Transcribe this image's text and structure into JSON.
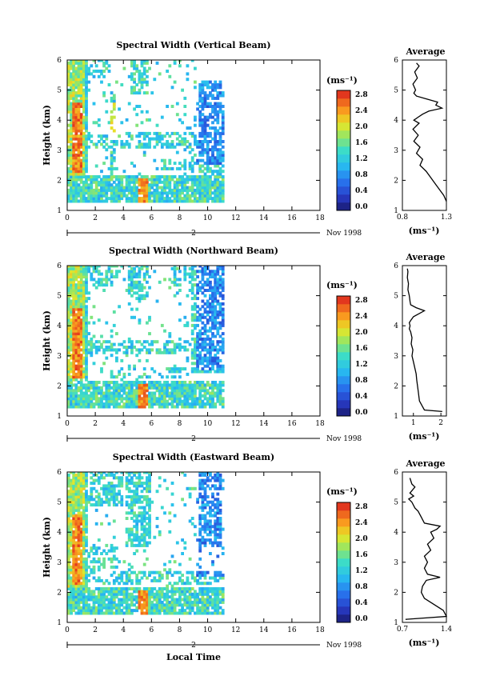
{
  "figure": {
    "xlabel": "Local Time"
  },
  "panels": [
    {
      "id": "vertical",
      "title": "Spectral Width (Vertical Beam)",
      "ylabel": "Height (km)",
      "date_label": "Nov 1998",
      "date_day": "2",
      "colorbar_unit": "(ms⁻¹)",
      "colorbar_ticks": [
        "2.8",
        "2.4",
        "2.0",
        "1.6",
        "1.2",
        "0.8",
        "0.4",
        "0.0"
      ],
      "avg_title": "Average",
      "avg_xlabel": "(ms⁻¹)",
      "avg_xticks": [
        "0.8",
        "1.3"
      ]
    },
    {
      "id": "northward",
      "title": "Spectral Width (Northward Beam)",
      "ylabel": "Height (km)",
      "date_label": "Nov 1998",
      "date_day": "2",
      "colorbar_unit": "(ms⁻¹)",
      "colorbar_ticks": [
        "2.8",
        "2.4",
        "2.0",
        "1.6",
        "1.2",
        "0.8",
        "0.4",
        "0.0"
      ],
      "avg_title": "Average",
      "avg_xlabel": "(ms⁻¹)",
      "avg_xticks": [
        "1",
        "2"
      ]
    },
    {
      "id": "eastward",
      "title": "Spectral Width (Eastward Beam)",
      "ylabel": "Height (km)",
      "date_label": "Nov 1998",
      "date_day": "2",
      "colorbar_unit": "(ms⁻¹)",
      "colorbar_ticks": [
        "2.8",
        "2.4",
        "2.0",
        "1.6",
        "1.2",
        "0.8",
        "0.4",
        "0.0"
      ],
      "avg_title": "Average",
      "avg_xlabel": "(ms⁻¹)",
      "avg_xticks": [
        "0.7",
        "1.4"
      ]
    }
  ],
  "chart_data": [
    {
      "type": "heatmap",
      "title": "Spectral Width (Vertical Beam)",
      "xlabel": "Local Time",
      "ylabel": "Height (km)",
      "xlim": [
        0,
        18
      ],
      "ylim": [
        1,
        6
      ],
      "xticks": [
        0,
        2,
        4,
        6,
        8,
        10,
        12,
        14,
        16,
        18
      ],
      "yticks": [
        1,
        2,
        3,
        4,
        5,
        6
      ],
      "data_time_range": [
        0,
        11
      ],
      "colorbar": {
        "label": "(ms⁻¹)",
        "range": [
          0.0,
          3.0
        ],
        "ticks": [
          0.0,
          0.4,
          0.8,
          1.2,
          1.6,
          2.0,
          2.4,
          2.8
        ]
      },
      "date": "2 Nov 1998"
    },
    {
      "type": "line",
      "title": "Average",
      "xlabel": "(ms⁻¹)",
      "ylabel": "Height (km)",
      "xlim": [
        0.8,
        1.3
      ],
      "ylim": [
        1,
        6
      ],
      "x": [
        1.3,
        1.27,
        1.22,
        1.17,
        1.12,
        1.07,
        1.0,
        1.03,
        0.96,
        1.0,
        0.93,
        0.98,
        0.92,
        0.99,
        0.93,
        0.98,
        1.03,
        1.1,
        1.25,
        1.18,
        1.2,
        1.08,
        0.96,
        0.93,
        0.95,
        0.92,
        0.97,
        0.94,
        0.99,
        0.96
      ],
      "y": [
        1.3,
        1.5,
        1.7,
        1.9,
        2.1,
        2.3,
        2.5,
        2.7,
        2.9,
        3.1,
        3.3,
        3.5,
        3.7,
        3.9,
        4.0,
        4.1,
        4.2,
        4.3,
        4.4,
        4.5,
        4.6,
        4.7,
        4.8,
        4.9,
        5.0,
        5.2,
        5.4,
        5.6,
        5.8,
        5.9
      ]
    },
    {
      "type": "heatmap",
      "title": "Spectral Width (Northward Beam)",
      "xlabel": "Local Time",
      "ylabel": "Height (km)",
      "xlim": [
        0,
        18
      ],
      "ylim": [
        1,
        6
      ],
      "xticks": [
        0,
        2,
        4,
        6,
        8,
        10,
        12,
        14,
        16,
        18
      ],
      "yticks": [
        1,
        2,
        3,
        4,
        5,
        6
      ],
      "data_time_range": [
        0,
        11
      ],
      "colorbar": {
        "label": "(ms⁻¹)",
        "range": [
          0.0,
          3.0
        ],
        "ticks": [
          0.0,
          0.4,
          0.8,
          1.2,
          1.6,
          2.0,
          2.4,
          2.8
        ]
      },
      "date": "2 Nov 1998"
    },
    {
      "type": "line",
      "title": "Average",
      "xlabel": "(ms⁻¹)",
      "ylabel": "Height (km)",
      "xlim": [
        0.6,
        2.2
      ],
      "ylim": [
        1,
        6
      ],
      "x": [
        2.05,
        1.4,
        1.22,
        1.18,
        1.15,
        1.12,
        1.1,
        1.05,
        1.0,
        0.95,
        0.98,
        0.92,
        0.95,
        0.9,
        0.85,
        0.88,
        0.85,
        0.92,
        1.0,
        1.2,
        1.4,
        1.1,
        0.9,
        0.88,
        0.85,
        0.8,
        0.82,
        0.78,
        0.8,
        0.78
      ],
      "y": [
        1.15,
        1.2,
        1.5,
        1.8,
        2.0,
        2.2,
        2.4,
        2.6,
        2.8,
        3.0,
        3.2,
        3.4,
        3.6,
        3.8,
        3.9,
        4.0,
        4.1,
        4.2,
        4.3,
        4.4,
        4.5,
        4.6,
        4.7,
        4.8,
        5.0,
        5.2,
        5.4,
        5.6,
        5.8,
        5.9
      ]
    },
    {
      "type": "heatmap",
      "title": "Spectral Width (Eastward Beam)",
      "xlabel": "Local Time",
      "ylabel": "Height (km)",
      "xlim": [
        0,
        18
      ],
      "ylim": [
        1,
        6
      ],
      "xticks": [
        0,
        2,
        4,
        6,
        8,
        10,
        12,
        14,
        16,
        18
      ],
      "yticks": [
        1,
        2,
        3,
        4,
        5,
        6
      ],
      "data_time_range": [
        0,
        11
      ],
      "colorbar": {
        "label": "(ms⁻¹)",
        "range": [
          0.0,
          3.0
        ],
        "ticks": [
          0.0,
          0.4,
          0.8,
          1.2,
          1.6,
          2.0,
          2.4,
          2.8
        ]
      },
      "date": "2 Nov 1998"
    },
    {
      "type": "line",
      "title": "Average",
      "xlabel": "(ms⁻¹)",
      "ylabel": "Height (km)",
      "xlim": [
        0.7,
        1.4
      ],
      "ylim": [
        1,
        6
      ],
      "x": [
        0.75,
        1.4,
        1.35,
        1.2,
        1.05,
        1.0,
        1.02,
        1.08,
        1.3,
        1.1,
        1.05,
        1.1,
        1.05,
        1.15,
        1.1,
        1.2,
        1.15,
        1.25,
        1.3,
        1.05,
        1.0,
        0.95,
        0.9,
        0.85,
        0.8,
        0.88,
        0.82,
        0.9,
        0.85,
        0.82
      ],
      "y": [
        1.1,
        1.2,
        1.4,
        1.6,
        1.8,
        2.0,
        2.2,
        2.4,
        2.5,
        2.6,
        2.8,
        3.0,
        3.2,
        3.4,
        3.6,
        3.8,
        4.0,
        4.1,
        4.2,
        4.3,
        4.5,
        4.7,
        4.8,
        5.0,
        5.1,
        5.2,
        5.3,
        5.5,
        5.6,
        5.8
      ]
    }
  ]
}
